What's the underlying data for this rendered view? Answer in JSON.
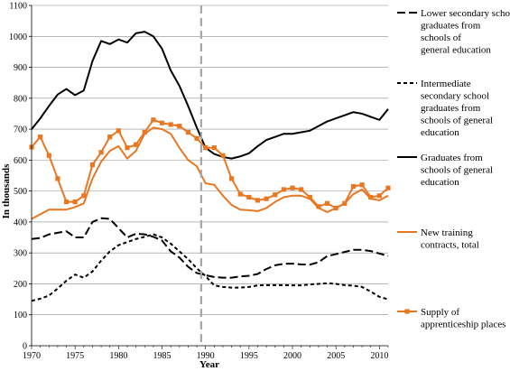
{
  "chart_data": {
    "type": "line",
    "xlabel": "Year",
    "ylabel": "In thousands",
    "xlim": [
      1970,
      2011
    ],
    "ylim": [
      0,
      1100
    ],
    "x_ticks": [
      1970,
      1975,
      1980,
      1985,
      1990,
      1995,
      2000,
      2005,
      2010
    ],
    "y_ticks": [
      0,
      100,
      200,
      300,
      400,
      500,
      600,
      700,
      800,
      900,
      1000,
      1100
    ],
    "grid": "horizontal",
    "legend_position": "right",
    "reference_line": {
      "x": 1989.5,
      "style": "dashed",
      "color": "#a6a6a6"
    },
    "x": [
      1970,
      1971,
      1972,
      1973,
      1974,
      1975,
      1976,
      1977,
      1978,
      1979,
      1980,
      1981,
      1982,
      1983,
      1984,
      1985,
      1986,
      1987,
      1988,
      1989,
      1990,
      1991,
      1992,
      1993,
      1994,
      1995,
      1996,
      1997,
      1998,
      1999,
      2000,
      2001,
      2002,
      2003,
      2004,
      2005,
      2006,
      2007,
      2008,
      2009,
      2010,
      2011
    ],
    "series": [
      {
        "name": "Lower secondary school graduates from schools of general education",
        "color": "#000000",
        "style": "longdash",
        "marker": "none",
        "values": [
          345,
          348,
          360,
          365,
          370,
          350,
          350,
          400,
          412,
          410,
          380,
          350,
          362,
          360,
          352,
          340,
          305,
          285,
          255,
          235,
          228,
          222,
          220,
          220,
          224,
          226,
          232,
          248,
          260,
          265,
          265,
          263,
          262,
          270,
          290,
          296,
          303,
          310,
          310,
          306,
          298,
          290
        ]
      },
      {
        "name": "Intermediate secondary school graduates from schools of general education",
        "color": "#000000",
        "style": "dashed",
        "marker": "none",
        "values": [
          145,
          152,
          162,
          185,
          210,
          230,
          220,
          240,
          275,
          305,
          325,
          335,
          345,
          352,
          360,
          350,
          330,
          305,
          280,
          250,
          225,
          195,
          190,
          188,
          188,
          190,
          195,
          196,
          196,
          196,
          195,
          195,
          198,
          200,
          202,
          200,
          196,
          194,
          190,
          175,
          158,
          150
        ]
      },
      {
        "name": "Graduates from schools of general education",
        "color": "#000000",
        "style": "solid",
        "marker": "none",
        "values": [
          700,
          735,
          775,
          812,
          830,
          810,
          825,
          920,
          985,
          975,
          990,
          980,
          1010,
          1015,
          1000,
          960,
          890,
          840,
          775,
          705,
          640,
          620,
          610,
          605,
          612,
          622,
          645,
          665,
          675,
          685,
          685,
          690,
          695,
          710,
          725,
          735,
          745,
          755,
          750,
          740,
          730,
          765
        ]
      },
      {
        "name": "New training contracts, total",
        "color": "#e87722",
        "style": "solid",
        "marker": "none",
        "values": [
          410,
          425,
          440,
          440,
          440,
          448,
          460,
          540,
          595,
          630,
          645,
          605,
          630,
          685,
          705,
          700,
          685,
          640,
          600,
          580,
          525,
          520,
          485,
          455,
          440,
          438,
          435,
          445,
          465,
          480,
          485,
          485,
          475,
          445,
          432,
          445,
          460,
          490,
          505,
          475,
          470,
          485
        ]
      },
      {
        "name": "Supply of apprenticeship places",
        "color": "#e87722",
        "style": "solid",
        "marker": "square",
        "values": [
          642,
          675,
          615,
          540,
          465,
          465,
          485,
          585,
          625,
          675,
          695,
          640,
          650,
          690,
          730,
          720,
          715,
          710,
          690,
          670,
          640,
          640,
          615,
          540,
          490,
          480,
          470,
          475,
          488,
          505,
          510,
          505,
          480,
          450,
          460,
          445,
          460,
          515,
          520,
          480,
          485,
          510
        ]
      }
    ]
  }
}
